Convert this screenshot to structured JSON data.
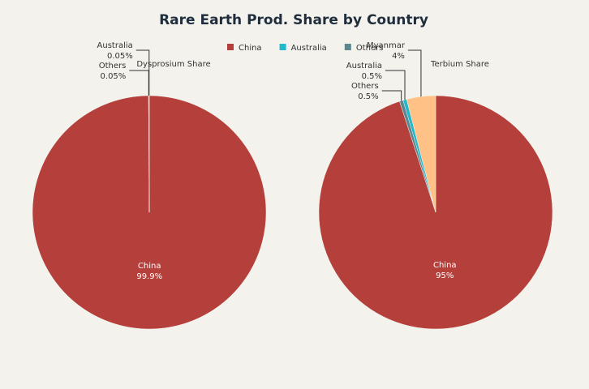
{
  "title": "Rare Earth Prod. Share by Country",
  "legend": [
    {
      "name": "China",
      "color": "#b5403b"
    },
    {
      "name": "Australia",
      "color": "#1fb8cd"
    },
    {
      "name": "Others",
      "color": "#5d878f"
    }
  ],
  "chart_data": [
    {
      "type": "pie",
      "title": "Dysprosium Share",
      "categories": [
        "China",
        "Australia",
        "Others"
      ],
      "values": [
        99.9,
        0.05,
        0.05
      ],
      "value_labels": [
        "99.9%",
        "0.05%",
        "0.05%"
      ],
      "colors": [
        "#b5403b",
        "#1fb8cd",
        "#5d878f"
      ]
    },
    {
      "type": "pie",
      "title": "Terbium Share",
      "categories": [
        "China",
        "Myanmar",
        "Australia",
        "Others"
      ],
      "values": [
        95,
        4,
        0.5,
        0.5
      ],
      "value_labels": [
        "95%",
        "4%",
        "0.5%",
        "0.5%"
      ],
      "colors": [
        "#b5403b",
        "#ffc185",
        "#1fb8cd",
        "#5d878f"
      ]
    }
  ]
}
